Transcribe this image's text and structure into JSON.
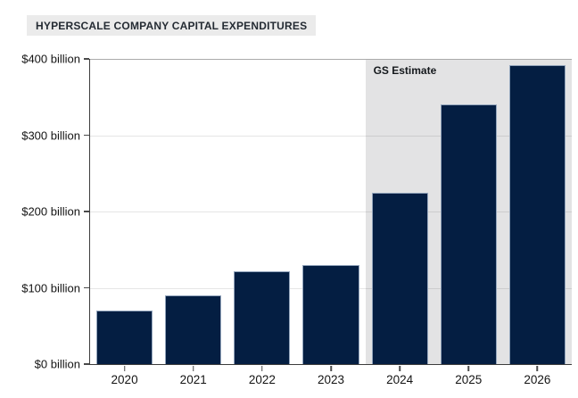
{
  "chart_data": {
    "type": "bar",
    "title": "HYPERSCALE COMPANY CAPITAL EXPENDITURES",
    "categories": [
      "2020",
      "2021",
      "2022",
      "2023",
      "2024",
      "2025",
      "2026"
    ],
    "values": [
      70,
      90,
      122,
      130,
      224,
      340,
      392
    ],
    "value_unit": "$ billion",
    "ylim": [
      0,
      400
    ],
    "yticks": [
      0,
      100,
      200,
      300,
      400
    ],
    "ytick_labels": [
      "$0 billion",
      "$100 billion",
      "$200 billion",
      "$300 billion",
      "$400 billion"
    ],
    "xlabel": "",
    "ylabel": "",
    "grid": "horizontal",
    "legend": "none",
    "annotation": {
      "label": "GS Estimate",
      "applies_to": [
        "2024",
        "2025",
        "2026"
      ]
    },
    "colors": {
      "bar": "#041e42",
      "bar_border": "#93a5bc",
      "estimate_region": "#e3e3e4",
      "title_background": "#ebebeb",
      "axis": "#3d3d3d",
      "text": "#141414"
    }
  }
}
